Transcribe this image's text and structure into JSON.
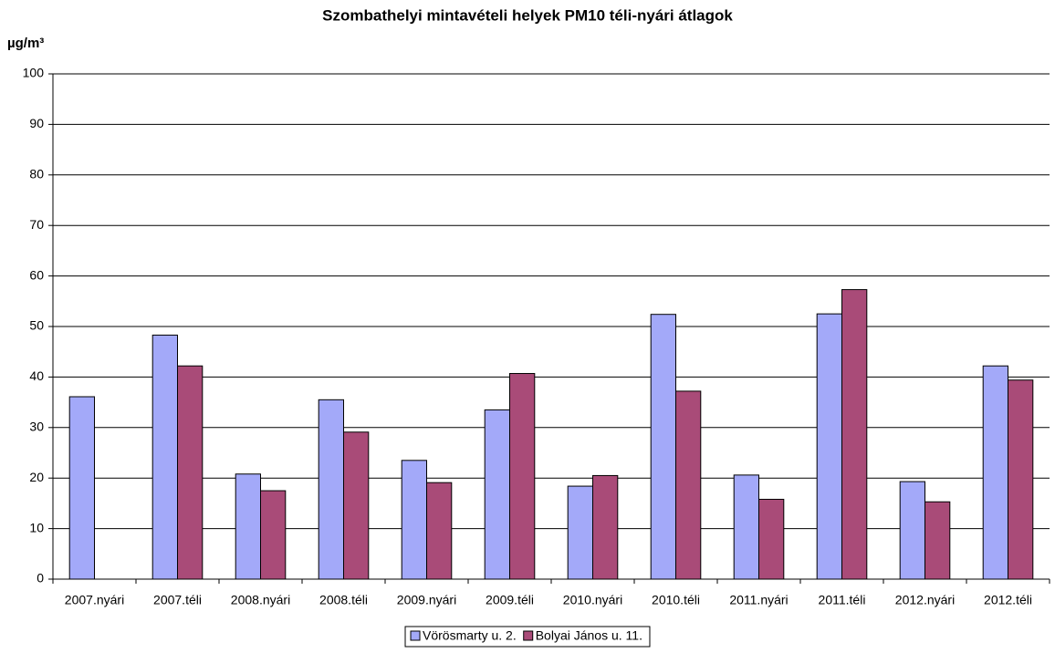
{
  "chart_data": {
    "type": "bar",
    "title": "Szombathelyi mintavételi helyek PM10 téli-nyári átlagok",
    "y_label": "µg/m³",
    "categories": [
      "2007.nyári",
      "2007.téli",
      "2008.nyári",
      "2008.téli",
      "2009.nyári",
      "2009.téli",
      "2010.nyári",
      "2010.téli",
      "2011.nyári",
      "2011.téli",
      "2012.nyári",
      "2012.téli"
    ],
    "series": [
      {
        "name": "Vörösmarty u. 2.",
        "color": "#a3a9f9",
        "values": [
          36.1,
          48.3,
          20.8,
          35.5,
          23.5,
          33.5,
          18.4,
          52.4,
          20.6,
          52.5,
          19.3,
          42.2
        ]
      },
      {
        "name": "Bolyai János u. 11.",
        "color": "#a94b78",
        "values": [
          null,
          42.2,
          17.5,
          29.1,
          19.1,
          40.7,
          20.5,
          37.2,
          15.8,
          57.3,
          15.3,
          39.4
        ]
      }
    ],
    "ylim": [
      0,
      100
    ],
    "yticks": [
      0,
      10,
      20,
      30,
      40,
      50,
      60,
      70,
      80,
      90,
      100
    ],
    "grid": true,
    "legend": "bottom"
  }
}
